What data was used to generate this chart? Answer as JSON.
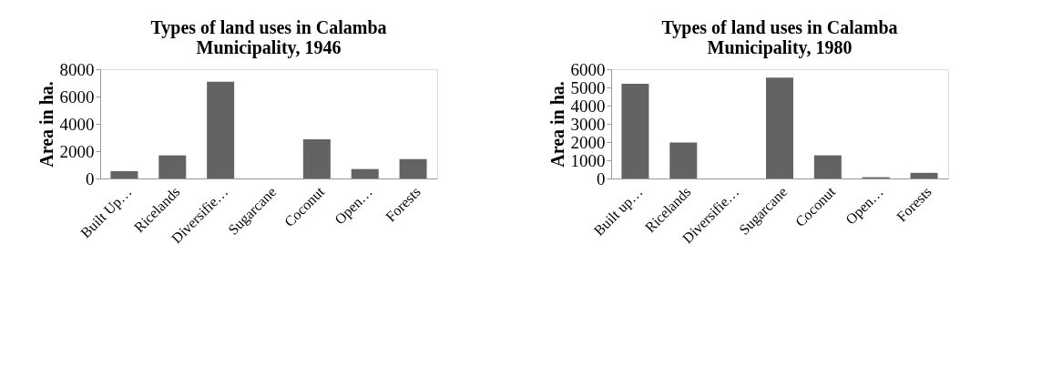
{
  "chart_data": [
    {
      "type": "bar",
      "title": "Types of land uses in Calamba Municipality, 1946",
      "ylabel": "Area in ha.",
      "categories": [
        "Built Up…",
        "Ricelands",
        "Diversifie…",
        "Sugarcane",
        "Coconut",
        "Open…",
        "Forests"
      ],
      "values": [
        540,
        1690,
        7090,
        0,
        2870,
        690,
        1420
      ],
      "color": "#636363",
      "ylim": [
        0,
        8000
      ],
      "yticks": [
        0,
        2000,
        4000,
        6000,
        8000
      ],
      "grid": false
    },
    {
      "type": "bar",
      "title": "Types of land uses in Calamba Municipality, 1980",
      "ylabel": "Area in ha.",
      "categories": [
        "Built up…",
        "Ricelands",
        "Diversifie…",
        "Sugarcane",
        "Coconut",
        "Open…",
        "Forests"
      ],
      "values": [
        5200,
        1980,
        0,
        5540,
        1270,
        70,
        310
      ],
      "color": "#636363",
      "ylim": [
        0,
        6000
      ],
      "yticks": [
        0,
        1000,
        2000,
        3000,
        4000,
        5000,
        6000
      ],
      "grid": false
    }
  ]
}
